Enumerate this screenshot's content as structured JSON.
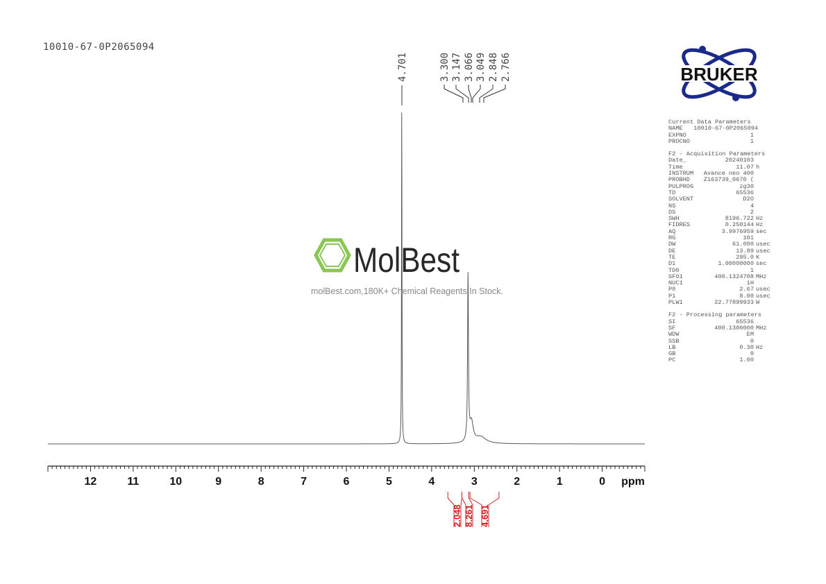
{
  "sample_name": "10010-67-0P2065094",
  "logo": {
    "brand": "BRUKER",
    "color": "#1a2a8a"
  },
  "watermark": {
    "brand": "MolBest",
    "tagline": "molBest.com,180K+ Chemical Reagents In Stock.",
    "color": "#7dc242"
  },
  "parameters": {
    "current": {
      "title": "Current Data Parameters",
      "rows": [
        [
          "NAME",
          "10010-67-0P2065094",
          ""
        ],
        [
          "EXPNO",
          "1",
          ""
        ],
        [
          "PROCNO",
          "1",
          ""
        ]
      ]
    },
    "acquisition": {
      "title": "F2 - Acquisition Parameters",
      "rows": [
        [
          "Date_",
          "20240103",
          ""
        ],
        [
          "Time",
          "11.07",
          "h"
        ],
        [
          "INSTRUM",
          "Avance neo 400",
          ""
        ],
        [
          "PROBHD",
          "Z163739_0670 (",
          ""
        ],
        [
          "PULPROG",
          "zg30",
          ""
        ],
        [
          "TD",
          "65536",
          ""
        ],
        [
          "SOLVENT",
          "D2O",
          ""
        ],
        [
          "NS",
          "4",
          ""
        ],
        [
          "DS",
          "2",
          ""
        ],
        [
          "SWH",
          "8196.722",
          "Hz"
        ],
        [
          "FIDRES",
          "0.250144",
          "Hz"
        ],
        [
          "AQ",
          "3.9976959",
          "sec"
        ],
        [
          "RG",
          "101",
          ""
        ],
        [
          "DW",
          "61.000",
          "usec"
        ],
        [
          "DE",
          "13.89",
          "usec"
        ],
        [
          "TE",
          "295.0",
          "K"
        ],
        [
          "D1",
          "1.00000000",
          "sec"
        ],
        [
          "TD0",
          "1",
          ""
        ],
        [
          "SFO1",
          "400.1324708",
          "MHz"
        ],
        [
          "NUC1",
          "1H",
          ""
        ],
        [
          "P0",
          "2.67",
          "usec"
        ],
        [
          "P1",
          "8.00",
          "usec"
        ],
        [
          "PLW1",
          "22.77899933",
          "W"
        ]
      ]
    },
    "processing": {
      "title": "F2 - Processing parameters",
      "rows": [
        [
          "SI",
          "65536",
          ""
        ],
        [
          "SF",
          "400.1300000",
          "MHz"
        ],
        [
          "WDW",
          "EM",
          ""
        ],
        [
          "SSB",
          "0",
          ""
        ],
        [
          "LB",
          "0.30",
          "Hz"
        ],
        [
          "GB",
          "0",
          ""
        ],
        [
          "PC",
          "1.00",
          ""
        ]
      ]
    }
  },
  "chart_data": {
    "type": "line",
    "xlabel": "ppm",
    "xlim": [
      13,
      -1
    ],
    "x_reversed": true,
    "xticks": [
      "12",
      "11",
      "10",
      "9",
      "8",
      "7",
      "6",
      "5",
      "4",
      "3",
      "2",
      "1",
      "0"
    ],
    "grid": false,
    "line_color": "#555555",
    "peaks": [
      {
        "ppm": 4.701,
        "relative_intensity": 1.0,
        "width": 0.006
      },
      {
        "ppm": 3.147,
        "relative_intensity": 0.49,
        "width": 0.012
      },
      {
        "ppm": 3.066,
        "relative_intensity": 0.06,
        "width": 0.05
      },
      {
        "ppm": 2.85,
        "relative_intensity": 0.02,
        "width": 0.15
      }
    ],
    "peak_labels": [
      "4.701",
      "3.300",
      "3.147",
      "3.066",
      "3.049",
      "2.848",
      "2.766"
    ],
    "integrals": [
      {
        "from": 3.62,
        "to": 3.29,
        "value": "2.048"
      },
      {
        "from": 3.29,
        "to": 3.13,
        "value": "8.261"
      },
      {
        "from": 3.1,
        "to": 2.42,
        "value": "4.691"
      }
    ],
    "integral_color": "#d42020"
  }
}
